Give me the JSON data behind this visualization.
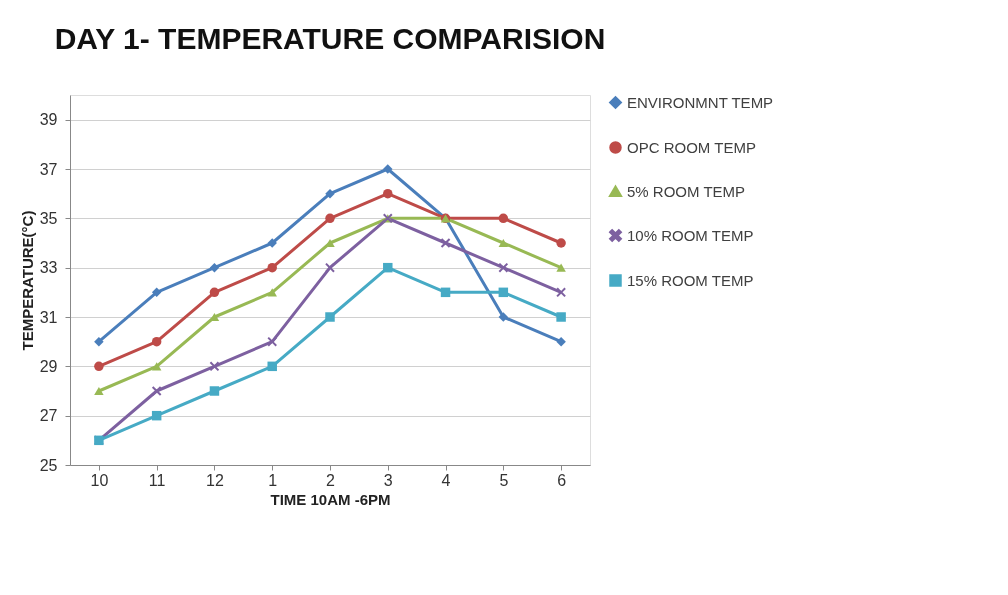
{
  "chart_data": {
    "type": "line",
    "title": "DAY 1- TEMPERATURE COMPARISION",
    "xlabel": "TIME 10AM -6PM",
    "ylabel": "TEMPERATURE(°C)",
    "categories": [
      "10",
      "11",
      "12",
      "1",
      "2",
      "3",
      "4",
      "5",
      "6"
    ],
    "ylim": [
      25,
      40
    ],
    "yticks": [
      25,
      27,
      29,
      31,
      33,
      35,
      37,
      39
    ],
    "grid": "y",
    "legend": "right",
    "line_style": "solid",
    "series": [
      {
        "name": "ENVIRONMNT TEMP",
        "color": "#4a7ebb",
        "marker": "diamond",
        "values": [
          30,
          32,
          33,
          34,
          36,
          37,
          35,
          31,
          30
        ]
      },
      {
        "name": "OPC ROOM TEMP",
        "color": "#be4b48",
        "marker": "circle",
        "values": [
          29,
          30,
          32,
          33,
          35,
          36,
          35,
          35,
          34
        ]
      },
      {
        "name": "5% ROOM TEMP",
        "color": "#98b954",
        "marker": "triangle",
        "values": [
          28,
          29,
          31,
          32,
          34,
          35,
          35,
          34,
          33
        ]
      },
      {
        "name": "10% ROOM TEMP",
        "color": "#7d60a0",
        "marker": "cross",
        "values": [
          26,
          28,
          29,
          30,
          33,
          35,
          34,
          33,
          32
        ]
      },
      {
        "name": "15% ROOM TEMP",
        "color": "#46aac5",
        "marker": "square",
        "values": [
          26,
          27,
          28,
          29,
          31,
          33,
          32,
          32,
          31
        ]
      }
    ]
  }
}
